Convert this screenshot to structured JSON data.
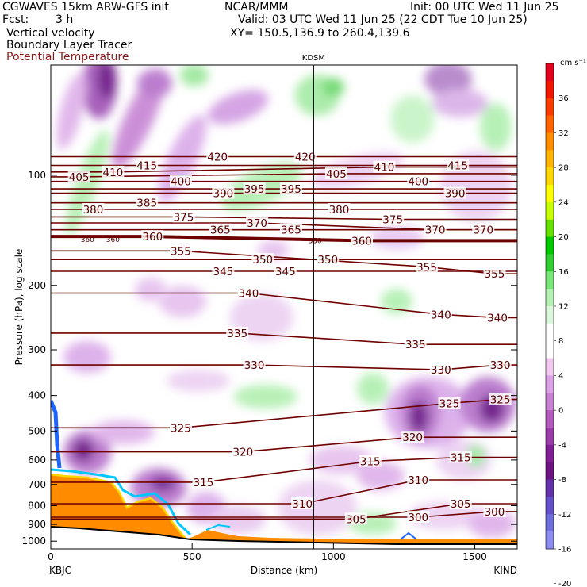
{
  "header": {
    "model": "CGWAVES 15km ARW-GFS init",
    "org": "NCAR/MMM",
    "init": "Init: 00 UTC Wed 11 Jun 25",
    "fcst_label": "Fcst:",
    "fcst_value": "3 h",
    "valid": "Valid: 03 UTC Wed 11 Jun 25 (22 CDT Tue 10 Jun 25)",
    "field1": "Vertical velocity",
    "field2": "Boundary Layer Tracer",
    "field3": "Potential Temperature",
    "xy": "XY= 150.5,136.9 to 260.4,139.6"
  },
  "colors": {
    "theta": "#6e0000",
    "header_red": "#8b1a1a"
  },
  "chart_data": {
    "type": "heatmap",
    "title": "",
    "xlabel": "Distance (km)",
    "ylabel": "Pressure (hPa), log scale",
    "xlim": [
      0,
      1650
    ],
    "ylim": [
      1050,
      50
    ],
    "y_log": true,
    "x_ticks": [
      0,
      500,
      1000,
      1500
    ],
    "y_ticks": [
      100,
      200,
      300,
      400,
      500,
      600,
      700,
      800,
      900,
      1000
    ],
    "station_left": "KBJC",
    "station_right": "KIND",
    "station_mid": "KDSM",
    "station_mid_x": 930,
    "colorbar": {
      "unit": "cm s⁻¹",
      "tick_labels": [
        36,
        32,
        28,
        24,
        20,
        16,
        12,
        8,
        4,
        0,
        -4,
        -8,
        -12,
        -16,
        -20
      ],
      "colors": [
        "#e6001e",
        "#f51400",
        "#ff3c00",
        "#ff6400",
        "#ff8c00",
        "#ffb400",
        "#ffd700",
        "#ffff00",
        "#c8ff00",
        "#64e100",
        "#00c800",
        "#32cd32",
        "#78e678",
        "#b4f0b4",
        "#dcf8dc",
        "#ffffff",
        "#ffffff",
        "#f0c8f0",
        "#dca0e6",
        "#c880d2",
        "#b45abe",
        "#9b3caa",
        "#821e96",
        "#6e1482",
        "#6432aa",
        "#6450c8",
        "#6e6edc",
        "#8c8cf0"
      ]
    },
    "theta_labels": [
      {
        "v": 420,
        "x": 590,
        "p": 89
      },
      {
        "v": 420,
        "x": 900,
        "p": 89
      },
      {
        "v": 415,
        "x": 340,
        "p": 94
      },
      {
        "v": 415,
        "x": 1440,
        "p": 94
      },
      {
        "v": 410,
        "x": 220,
        "p": 98
      },
      {
        "v": 410,
        "x": 1180,
        "p": 95
      },
      {
        "v": 405,
        "x": 100,
        "p": 101
      },
      {
        "v": 405,
        "x": 1010,
        "p": 99
      },
      {
        "v": 400,
        "x": 460,
        "p": 104
      },
      {
        "v": 400,
        "x": 1300,
        "p": 104
      },
      {
        "v": 395,
        "x": 720,
        "p": 109
      },
      {
        "v": 395,
        "x": 850,
        "p": 109
      },
      {
        "v": 390,
        "x": 610,
        "p": 112
      },
      {
        "v": 390,
        "x": 1430,
        "p": 112
      },
      {
        "v": 385,
        "x": 340,
        "p": 119
      },
      {
        "v": 380,
        "x": 150,
        "p": 124
      },
      {
        "v": 380,
        "x": 1020,
        "p": 124
      },
      {
        "v": 375,
        "x": 470,
        "p": 130
      },
      {
        "v": 375,
        "x": 1210,
        "p": 132
      },
      {
        "v": 370,
        "x": 730,
        "p": 135
      },
      {
        "v": 370,
        "x": 1360,
        "p": 141
      },
      {
        "v": 370,
        "x": 1530,
        "p": 141
      },
      {
        "v": 365,
        "x": 600,
        "p": 141
      },
      {
        "v": 365,
        "x": 850,
        "p": 141
      },
      {
        "v": 360,
        "x": 360,
        "p": 147
      },
      {
        "v": 360,
        "x": 1100,
        "p": 151
      },
      {
        "v": 355,
        "x": 460,
        "p": 161
      },
      {
        "v": 355,
        "x": 1330,
        "p": 178
      },
      {
        "v": 355,
        "x": 1570,
        "p": 186
      },
      {
        "v": 350,
        "x": 750,
        "p": 170
      },
      {
        "v": 350,
        "x": 980,
        "p": 170
      },
      {
        "v": 345,
        "x": 610,
        "p": 183
      },
      {
        "v": 345,
        "x": 830,
        "p": 183
      },
      {
        "v": 340,
        "x": 700,
        "p": 210
      },
      {
        "v": 340,
        "x": 1380,
        "p": 240
      },
      {
        "v": 340,
        "x": 1580,
        "p": 245
      },
      {
        "v": 335,
        "x": 660,
        "p": 270
      },
      {
        "v": 335,
        "x": 1290,
        "p": 290
      },
      {
        "v": 330,
        "x": 720,
        "p": 330
      },
      {
        "v": 330,
        "x": 1380,
        "p": 340
      },
      {
        "v": 330,
        "x": 1590,
        "p": 330
      },
      {
        "v": 325,
        "x": 460,
        "p": 490
      },
      {
        "v": 325,
        "x": 1410,
        "p": 420
      },
      {
        "v": 325,
        "x": 1590,
        "p": 410
      },
      {
        "v": 320,
        "x": 680,
        "p": 570
      },
      {
        "v": 320,
        "x": 1280,
        "p": 520
      },
      {
        "v": 315,
        "x": 540,
        "p": 690
      },
      {
        "v": 315,
        "x": 1130,
        "p": 605
      },
      {
        "v": 315,
        "x": 1450,
        "p": 590
      },
      {
        "v": 310,
        "x": 890,
        "p": 790
      },
      {
        "v": 310,
        "x": 1300,
        "p": 680
      },
      {
        "v": 305,
        "x": 1080,
        "p": 870
      },
      {
        "v": 305,
        "x": 1450,
        "p": 790
      },
      {
        "v": 300,
        "x": 1300,
        "p": 860
      },
      {
        "v": 300,
        "x": 1570,
        "p": 830
      }
    ],
    "theta_small_labels": [
      {
        "v": 360,
        "x": 130,
        "p": 150
      },
      {
        "v": 360,
        "x": 220,
        "p": 150
      },
      {
        "v": 350,
        "x": 935,
        "p": 151
      }
    ]
  }
}
